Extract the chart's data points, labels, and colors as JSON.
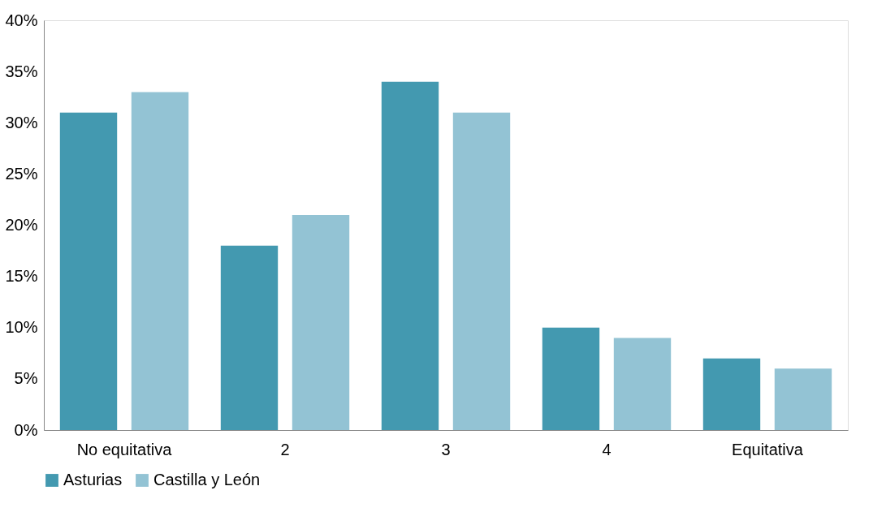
{
  "chart_data": {
    "type": "bar",
    "categories": [
      "No equitativa",
      "2",
      "3",
      "4",
      "Equitativa"
    ],
    "series": [
      {
        "name": "Asturias",
        "color": "#4399b0",
        "values": [
          31,
          18,
          34,
          10,
          7
        ]
      },
      {
        "name": "Castilla y León",
        "color": "#93c3d4",
        "values": [
          33,
          21,
          31,
          9,
          6
        ]
      }
    ],
    "ylim": [
      0,
      40
    ],
    "yticks": [
      {
        "value": 0,
        "label": "0%"
      },
      {
        "value": 5,
        "label": "5%"
      },
      {
        "value": 10,
        "label": "10%"
      },
      {
        "value": 15,
        "label": "15%"
      },
      {
        "value": 20,
        "label": "20%"
      },
      {
        "value": 25,
        "label": "25%"
      },
      {
        "value": 30,
        "label": "30%"
      },
      {
        "value": 35,
        "label": "35%"
      },
      {
        "value": 40,
        "label": "40%"
      }
    ],
    "grid": false,
    "legend": "bottom"
  }
}
